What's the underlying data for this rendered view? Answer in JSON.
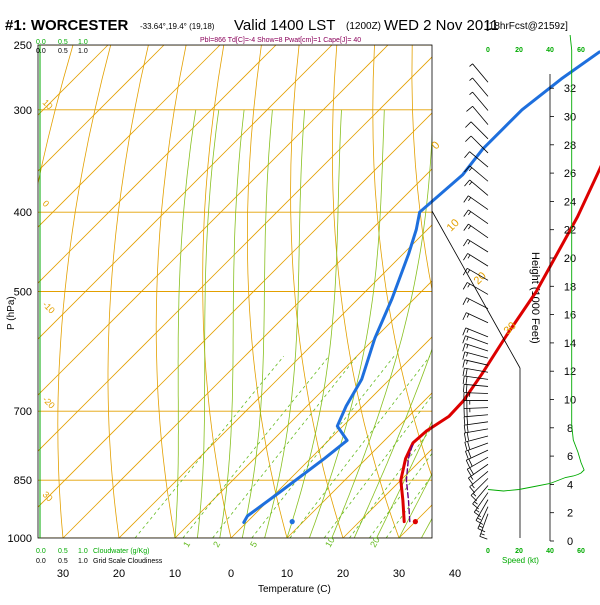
{
  "header": {
    "station": "#1: WORCESTER",
    "coords": "-33.64°,19.4° (19,18)",
    "valid": "Valid 1400 LST",
    "utc": "(1200Z)",
    "date": "WED 2 Nov 2011",
    "forecast": "[18hrFcst@2159z]",
    "indices": "Pbl=866 Td[C]=-4 Show=8 Pwat[cm]=1 Cape[J]= 40"
  },
  "chart_data": {
    "type": "line",
    "xlabel": "Temperature (C)",
    "ylabel": "P (hPa)",
    "ylabel_right": "Height (1000 Feet)",
    "x_ticks": [
      "30",
      "20",
      "10",
      "0",
      "10",
      "20",
      "30",
      "40"
    ],
    "x_tick_values": [
      -30,
      -20,
      -10,
      0,
      10,
      20,
      30,
      40
    ],
    "p_ticks": [
      250,
      300,
      400,
      500,
      700,
      850,
      1000
    ],
    "height_ticks": [
      0,
      2,
      4,
      6,
      8,
      10,
      12,
      14,
      16,
      18,
      20,
      22,
      24,
      26,
      28,
      30,
      32
    ],
    "xlim": [
      -35,
      47
    ],
    "plim": [
      1000,
      250
    ],
    "series": [
      {
        "role": "temperature",
        "color": "#dd0000",
        "points": [
          [
            28,
            955
          ],
          [
            24,
            900
          ],
          [
            20,
            850
          ],
          [
            17,
            800
          ],
          [
            15.5,
            765
          ],
          [
            15.8,
            740
          ],
          [
            17.2,
            710
          ],
          [
            17.0,
            680
          ],
          [
            15.5,
            630
          ],
          [
            13,
            565
          ],
          [
            10.5,
            500
          ],
          [
            7.5,
            450
          ],
          [
            4.5,
            405
          ],
          [
            0.5,
            360
          ],
          [
            -3.5,
            320
          ],
          [
            -6,
            295
          ],
          [
            -8.5,
            270
          ]
        ]
      },
      {
        "role": "dewpoint",
        "color": "#1e6fdd",
        "points": [
          [
            -0.5,
            957
          ],
          [
            -1,
            940
          ],
          [
            0.5,
            880
          ],
          [
            2.5,
            800
          ],
          [
            3.3,
            760
          ],
          [
            -1,
            730
          ],
          [
            -3,
            690
          ],
          [
            -5,
            640
          ],
          [
            -10,
            570
          ],
          [
            -14,
            510
          ],
          [
            -19,
            450
          ],
          [
            -22,
            420
          ],
          [
            -24.5,
            400
          ],
          [
            -23.5,
            360
          ],
          [
            -24.5,
            335
          ],
          [
            -24.5,
            300
          ],
          [
            -23,
            275
          ],
          [
            -21,
            255
          ]
        ]
      },
      {
        "role": "parcel",
        "color": "#6a0080",
        "dashed": true,
        "points": [
          [
            29,
            955
          ],
          [
            25,
            900
          ],
          [
            21,
            850
          ],
          [
            17.5,
            800
          ],
          [
            15.5,
            765
          ]
        ]
      }
    ],
    "surface_marker_temp": 30,
    "surface_marker_dew": 8,
    "isotherm_labels": [
      "-30",
      "-20",
      "-10",
      "0",
      "10",
      "20",
      "30",
      "40"
    ],
    "mixing_ratio_labels": [
      "1",
      "2",
      "5",
      "10",
      "20"
    ],
    "dry_adiabat_labels": [
      "10",
      "0",
      "-10",
      "-20",
      "30"
    ],
    "cloud_scale": {
      "top_labels": [
        "0.0",
        "0.5",
        "1.0"
      ],
      "bottom_labels": [
        "0.0",
        "0.5",
        "1.0"
      ],
      "cloudwater_label": "Cloudwater (g/Kg)",
      "gridscale_label": "Grid Scale Cloudiness"
    },
    "wind_speed": {
      "label": "Speed (kt)",
      "ticks": [
        "0",
        "20",
        "40",
        "60"
      ],
      "profile": [
        [
          0,
          27
        ],
        [
          10,
          26
        ],
        [
          20,
          27
        ],
        [
          30,
          29
        ],
        [
          40,
          31
        ],
        [
          45,
          33
        ],
        [
          50,
          35
        ],
        [
          55,
          36
        ],
        [
          58,
          37
        ],
        [
          60,
          38
        ],
        [
          62,
          40
        ],
        [
          60,
          45
        ],
        [
          58,
          52
        ],
        [
          55,
          60
        ],
        [
          54,
          70
        ],
        [
          54,
          90
        ],
        [
          54,
          120
        ],
        [
          54,
          160
        ],
        [
          54,
          200
        ],
        [
          54,
          240
        ],
        [
          54,
          280
        ],
        [
          54,
          320
        ],
        [
          53,
          330
        ]
      ]
    },
    "wind_barbs": {
      "heights_kft": [
        1.5,
        2,
        2.5,
        3,
        3.5,
        4,
        4.5,
        5,
        5.5,
        6,
        6.5,
        7,
        7.5,
        8,
        8.5,
        9,
        9.5,
        10,
        10.5,
        11,
        11.5,
        12,
        12.5,
        13,
        13.5,
        14,
        15,
        16,
        17,
        18,
        19,
        20,
        21,
        22,
        23,
        24,
        25,
        26,
        27,
        28,
        29,
        30,
        31,
        32
      ],
      "speeds_kt": [
        15,
        15,
        15,
        15,
        15,
        15,
        15,
        15,
        20,
        20,
        20,
        20,
        20,
        20,
        20,
        25,
        25,
        25,
        20,
        20,
        20,
        15,
        15,
        15,
        15,
        15,
        15,
        15,
        15,
        15,
        15,
        15,
        15,
        15,
        15,
        15,
        15,
        10,
        10,
        10,
        10,
        5,
        5,
        5
      ],
      "directions_deg": [
        200,
        205,
        210,
        215,
        220,
        225,
        230,
        235,
        240,
        245,
        250,
        255,
        260,
        262,
        265,
        268,
        270,
        272,
        275,
        278,
        280,
        283,
        285,
        288,
        290,
        292,
        295,
        297,
        300,
        300,
        302,
        302,
        305,
        305,
        305,
        310,
        310,
        310,
        315,
        315,
        320,
        320,
        320,
        320
      ]
    }
  },
  "colors": {
    "isotherm": "#e3a000",
    "isobar": "#e3a000",
    "dry_adiabat": "#e3a000",
    "moist_adiabat": "#88c020",
    "mixing_ratio": "#66bb22",
    "hodo_green": "#00aa00",
    "title_dark": "#000000",
    "indices_purple": "#8a005a"
  }
}
